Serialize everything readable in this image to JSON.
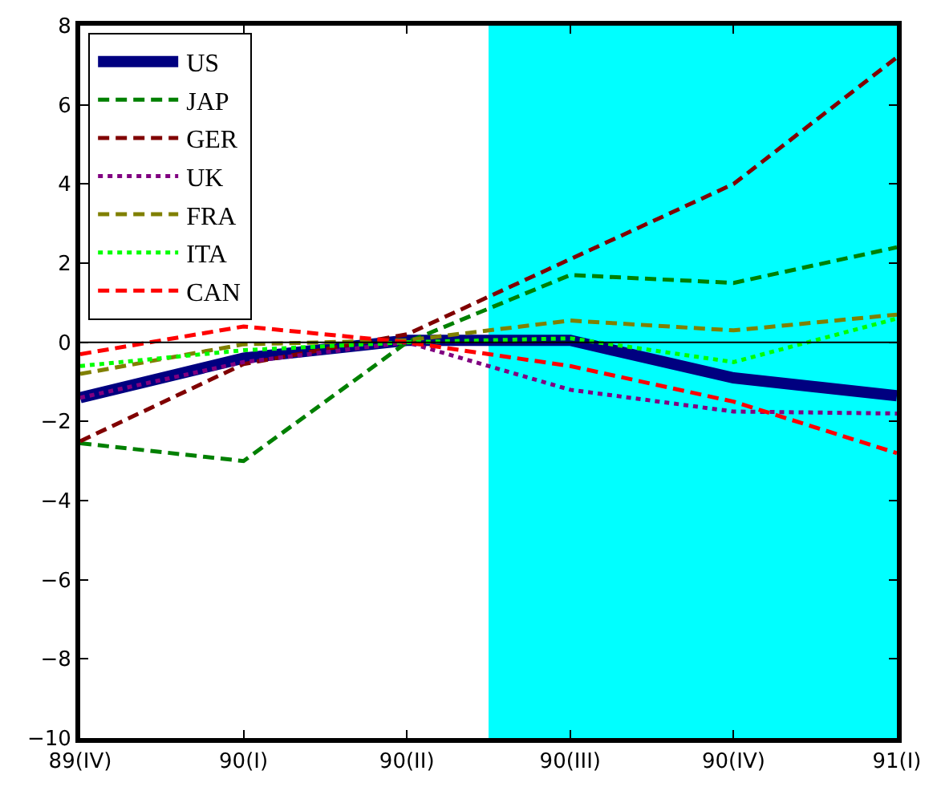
{
  "chart_data": {
    "type": "line",
    "categories": [
      "89(IV)",
      "90(I)",
      "90(II)",
      "90(III)",
      "90(IV)",
      "91(I)"
    ],
    "ylim": [
      -10,
      8
    ],
    "yticks": [
      -10,
      -8,
      -6,
      -4,
      -2,
      0,
      2,
      4,
      6,
      8
    ],
    "series": [
      {
        "name": "US",
        "color": "#000080",
        "line_style": "solid",
        "values": [
          -1.4,
          -0.4,
          0.05,
          0.05,
          -0.9,
          -1.35
        ]
      },
      {
        "name": "JAP",
        "color": "#008000",
        "line_style": "dashed",
        "values": [
          -2.55,
          -3.0,
          0.0,
          1.7,
          1.5,
          2.4
        ]
      },
      {
        "name": "GER",
        "color": "#800000",
        "line_style": "dashed",
        "values": [
          -2.5,
          -0.55,
          0.2,
          2.1,
          4.0,
          7.2
        ]
      },
      {
        "name": "UK",
        "color": "#800080",
        "line_style": "dotted",
        "values": [
          -1.4,
          -0.5,
          0.0,
          -1.2,
          -1.75,
          -1.8
        ]
      },
      {
        "name": "FRA",
        "color": "#808000",
        "line_style": "dashed",
        "values": [
          -0.8,
          -0.05,
          0.05,
          0.55,
          0.3,
          0.7
        ]
      },
      {
        "name": "ITA",
        "color": "#00ff00",
        "line_style": "dotted",
        "values": [
          -0.6,
          -0.2,
          0.0,
          0.1,
          -0.5,
          0.6
        ]
      },
      {
        "name": "CAN",
        "color": "#ff0000",
        "line_style": "dashed",
        "values": [
          -0.3,
          0.4,
          0.0,
          -0.6,
          -1.5,
          -2.8
        ]
      }
    ],
    "ref_lines": [
      {
        "axis": "y",
        "value": 0,
        "color": "#000000"
      }
    ],
    "grid": false,
    "legend": "top left"
  }
}
